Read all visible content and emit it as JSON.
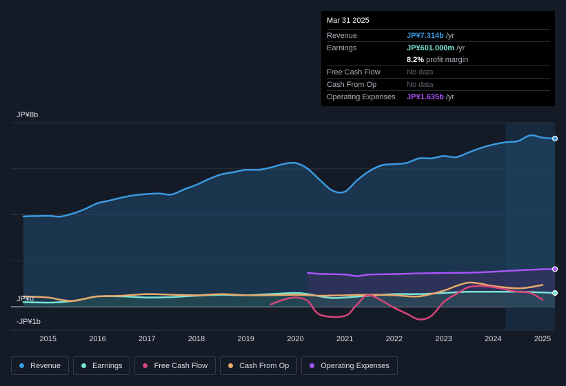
{
  "tooltip": {
    "date": "Mar 31 2025",
    "rows": [
      {
        "label": "Revenue",
        "value": "JP¥7.314b",
        "unit": "/yr",
        "color": "#3b9ae1"
      },
      {
        "label": "Earnings",
        "value": "JP¥601.000m",
        "unit": "/yr",
        "color": "#7ae3d3"
      },
      {
        "label": "",
        "value": "8.2%",
        "unit": "profit margin",
        "color": "#ffffff"
      },
      {
        "label": "Free Cash Flow",
        "value": "No data",
        "unit": "",
        "color": "muted"
      },
      {
        "label": "Cash From Op",
        "value": "No data",
        "unit": "",
        "color": "muted"
      },
      {
        "label": "Operating Expenses",
        "value": "JP¥1.635b",
        "unit": "/yr",
        "color": "#a855f7"
      }
    ]
  },
  "legend": [
    {
      "label": "Revenue",
      "color": "#3b9ae1"
    },
    {
      "label": "Earnings",
      "color": "#7ae3d3"
    },
    {
      "label": "Free Cash Flow",
      "color": "#d6457a"
    },
    {
      "label": "Cash From Op",
      "color": "#e8a96a"
    },
    {
      "label": "Operating Expenses",
      "color": "#a855f7"
    }
  ],
  "chart_data": {
    "type": "area",
    "title": "",
    "xlabel": "",
    "ylabel": "",
    "y_unit": "JP¥ billions",
    "ylim": [
      -1,
      8
    ],
    "y_tick_labels": [
      {
        "value": 8,
        "label": "JP¥8b"
      },
      {
        "value": 0,
        "label": "JP¥0"
      },
      {
        "value": -1,
        "label": "-JP¥1b"
      }
    ],
    "xlim": [
      2014.25,
      2025.25
    ],
    "x_ticks": [
      2015,
      2016,
      2017,
      2018,
      2019,
      2020,
      2021,
      2022,
      2023,
      2024,
      2025
    ],
    "x_tick_labels": [
      "2015",
      "2016",
      "2017",
      "2018",
      "2019",
      "2020",
      "2021",
      "2022",
      "2023",
      "2024",
      "2025"
    ],
    "highlight_from": 2024.25,
    "series": [
      {
        "name": "Revenue",
        "color": "#3b9ae1",
        "fill": true,
        "x": [
          2014.5,
          2015.0,
          2015.25,
          2015.5,
          2015.75,
          2016.0,
          2016.25,
          2016.5,
          2016.75,
          2017.0,
          2017.25,
          2017.5,
          2017.75,
          2018.0,
          2018.25,
          2018.5,
          2018.75,
          2019.0,
          2019.25,
          2019.5,
          2019.75,
          2020.0,
          2020.25,
          2020.5,
          2020.75,
          2021.0,
          2021.25,
          2021.5,
          2021.75,
          2022.0,
          2022.25,
          2022.5,
          2022.75,
          2023.0,
          2023.25,
          2023.5,
          2023.75,
          2024.0,
          2024.25,
          2024.5,
          2024.75,
          2025.0,
          2025.25
        ],
        "values": [
          3.93,
          3.95,
          3.92,
          4.05,
          4.25,
          4.5,
          4.62,
          4.75,
          4.85,
          4.9,
          4.92,
          4.88,
          5.1,
          5.3,
          5.55,
          5.75,
          5.85,
          5.95,
          5.95,
          6.05,
          6.2,
          6.25,
          6.0,
          5.5,
          5.05,
          5.0,
          5.5,
          5.9,
          6.15,
          6.2,
          6.25,
          6.45,
          6.45,
          6.55,
          6.5,
          6.7,
          6.9,
          7.05,
          7.15,
          7.2,
          7.45,
          7.35,
          7.31
        ]
      },
      {
        "name": "Earnings",
        "color": "#7ae3d3",
        "fill": true,
        "x": [
          2014.5,
          2015.0,
          2015.25,
          2015.5,
          2015.75,
          2016.0,
          2016.5,
          2017.0,
          2017.5,
          2018.0,
          2018.5,
          2019.0,
          2019.5,
          2020.0,
          2020.25,
          2020.5,
          2020.75,
          2021.0,
          2021.5,
          2022.0,
          2022.5,
          2023.0,
          2023.5,
          2024.0,
          2024.5,
          2025.0,
          2025.25
        ],
        "values": [
          0.2,
          0.18,
          0.2,
          0.25,
          0.35,
          0.45,
          0.45,
          0.4,
          0.42,
          0.48,
          0.52,
          0.5,
          0.55,
          0.6,
          0.55,
          0.45,
          0.38,
          0.4,
          0.48,
          0.55,
          0.55,
          0.6,
          0.65,
          0.65,
          0.65,
          0.62,
          0.6
        ]
      },
      {
        "name": "Free Cash Flow",
        "color": "#d6457a",
        "fill": false,
        "x": [
          2019.5,
          2019.75,
          2020.0,
          2020.25,
          2020.5,
          2021.0,
          2021.25,
          2021.5,
          2022.0,
          2022.25,
          2022.5,
          2022.75,
          2023.0,
          2023.25,
          2023.5,
          2023.75,
          2024.0,
          2024.25,
          2024.5,
          2024.75,
          2025.0
        ],
        "values": [
          0.1,
          0.3,
          0.4,
          0.25,
          -0.35,
          -0.4,
          0.1,
          0.5,
          -0.05,
          -0.3,
          -0.55,
          -0.4,
          0.2,
          0.55,
          0.85,
          0.9,
          0.85,
          0.75,
          0.65,
          0.6,
          0.3
        ]
      },
      {
        "name": "Cash From Op",
        "color": "#e8a96a",
        "fill": false,
        "x": [
          2014.5,
          2015.0,
          2015.25,
          2015.5,
          2015.75,
          2016.0,
          2016.5,
          2017.0,
          2017.5,
          2018.0,
          2018.5,
          2019.0,
          2019.5,
          2020.0,
          2020.5,
          2021.0,
          2021.5,
          2022.0,
          2022.5,
          2023.0,
          2023.25,
          2023.5,
          2023.75,
          2024.0,
          2024.5,
          2024.75,
          2025.0
        ],
        "values": [
          0.45,
          0.4,
          0.3,
          0.25,
          0.35,
          0.45,
          0.48,
          0.55,
          0.52,
          0.5,
          0.55,
          0.5,
          0.5,
          0.52,
          0.48,
          0.5,
          0.52,
          0.5,
          0.45,
          0.7,
          0.9,
          1.05,
          1.0,
          0.9,
          0.8,
          0.85,
          0.95
        ]
      },
      {
        "name": "Operating Expenses",
        "color": "#a855f7",
        "fill": true,
        "x": [
          2020.25,
          2020.5,
          2021.0,
          2021.25,
          2021.5,
          2022.0,
          2022.5,
          2023.0,
          2023.5,
          2024.0,
          2024.5,
          2025.0,
          2025.25
        ],
        "values": [
          1.47,
          1.43,
          1.4,
          1.33,
          1.4,
          1.42,
          1.45,
          1.47,
          1.48,
          1.52,
          1.58,
          1.63,
          1.635
        ]
      }
    ]
  }
}
